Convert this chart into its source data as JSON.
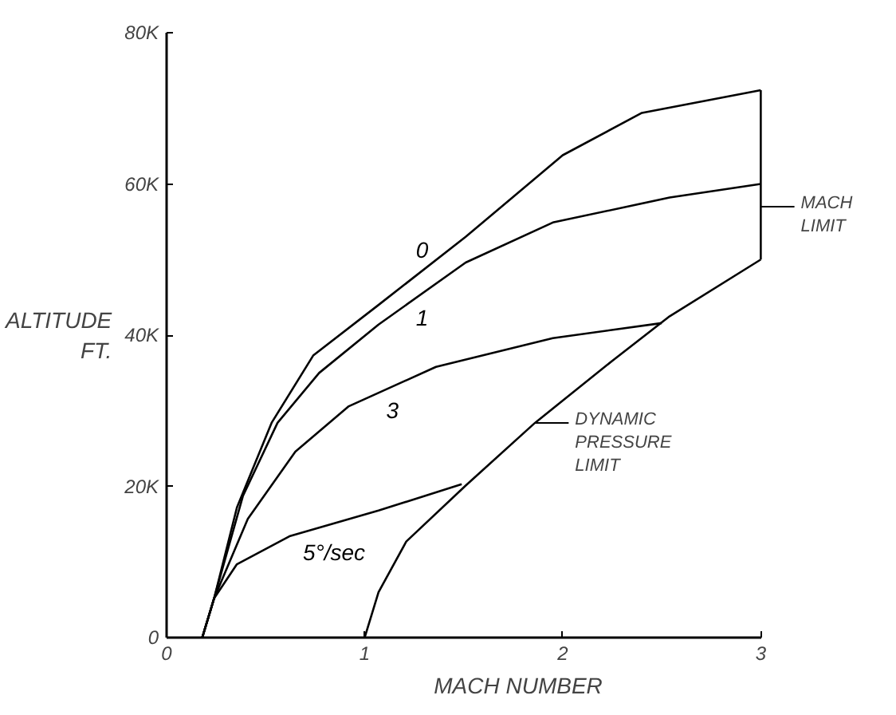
{
  "chart_data": {
    "type": "line",
    "xlabel": "MACH NUMBER",
    "ylabel": "ALTITUDE\nFT.",
    "xlim": [
      0,
      3
    ],
    "ylim": [
      0,
      80000
    ],
    "xticks": [
      0,
      1,
      2,
      3
    ],
    "yticks": [
      0,
      {
        "value": 20000,
        "label": "20K"
      },
      {
        "value": 40000,
        "label": "40K"
      },
      {
        "value": 60000,
        "label": "60K"
      },
      {
        "value": 80000,
        "label": "80K"
      }
    ],
    "grid": false,
    "marker": "none",
    "line_style": "solid",
    "series": [
      {
        "name": "0",
        "color": "#000000",
        "x": [
          0.18,
          0.24,
          0.355,
          0.53,
          0.74,
          1.07,
          1.51,
          2.0,
          2.4,
          3.0
        ],
        "values": [
          0,
          5200,
          17200,
          28400,
          37300,
          44000,
          53000,
          63800,
          69400,
          72400
        ]
      },
      {
        "name": "1",
        "color": "#000000",
        "x": [
          0.18,
          0.24,
          0.385,
          0.56,
          0.77,
          1.07,
          1.51,
          1.95,
          2.54,
          3.0
        ],
        "values": [
          0,
          5200,
          18700,
          28400,
          35000,
          41400,
          49600,
          54900,
          58200,
          60000
        ]
      },
      {
        "name": "3",
        "color": "#000000",
        "x": [
          0.18,
          0.24,
          0.41,
          0.65,
          0.92,
          1.36,
          1.95,
          2.5
        ],
        "values": [
          0,
          5200,
          15700,
          24600,
          30600,
          35800,
          39600,
          41600
        ]
      },
      {
        "name": "5°/sec",
        "color": "#000000",
        "x": [
          0.18,
          0.24,
          0.355,
          0.62,
          1.07,
          1.49
        ],
        "values": [
          0,
          5200,
          9700,
          13400,
          16800,
          20300
        ]
      },
      {
        "color": "#000000",
        "x": [
          1.0,
          1.07,
          1.21,
          1.51,
          1.86,
          2.25,
          2.54,
          3.0
        ],
        "values": [
          0,
          6000,
          12700,
          20100,
          28400,
          36600,
          42500,
          50000
        ]
      },
      {
        "color": "#000000",
        "x": [
          3.0,
          3.0
        ],
        "values": [
          50000,
          72400
        ]
      }
    ],
    "annotations": [
      {
        "text": "MACH\nLIMIT",
        "x": 3.0,
        "y": 57000
      },
      {
        "text": "DYNAMIC\nPRESSURE\nLIMIT",
        "x": 1.86,
        "y": 28400
      }
    ]
  }
}
